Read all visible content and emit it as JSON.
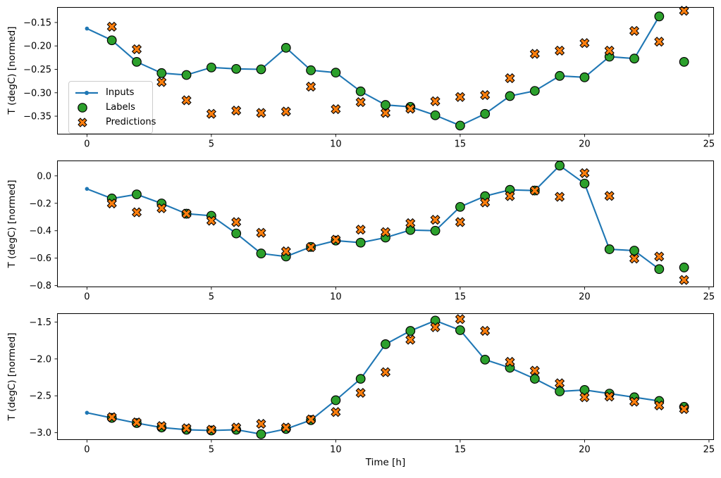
{
  "figure": {
    "xlabel": "Time [h]",
    "background": "#ffffff",
    "colors": {
      "inputs": "#1f77b4",
      "labels": "#2ca02c",
      "predictions": "#ff7f0e",
      "marker_edge": "#000000",
      "spine": "#000000",
      "text": "#000000"
    },
    "legend": {
      "position": "center-left-of-first-subplot",
      "items": [
        {
          "label": "Inputs",
          "marker": "line-with-dot",
          "color": "#1f77b4"
        },
        {
          "label": "Labels",
          "marker": "circle",
          "color": "#2ca02c"
        },
        {
          "label": "Predictions",
          "marker": "X",
          "color": "#ff7f0e"
        }
      ]
    }
  },
  "chart_data": [
    {
      "id": "subplot-1",
      "type": "line",
      "ylabel": "T (degC) [normed]",
      "grid": false,
      "xlim": [
        -1.2,
        25.2
      ],
      "ylim": [
        -0.389,
        -0.117
      ],
      "xtick_values": [
        0,
        5,
        10,
        15,
        20,
        25
      ],
      "xtick_labels": [
        "0",
        "5",
        "10",
        "15",
        "20",
        "25"
      ],
      "ytick_values": [
        -0.15,
        -0.2,
        -0.25,
        -0.3,
        -0.35
      ],
      "ytick_labels": [
        "−0.15",
        "−0.20",
        "−0.25",
        "−0.30",
        "−0.35"
      ],
      "series": [
        {
          "name": "Inputs",
          "plot": "line",
          "marker": "dot",
          "color": "#1f77b4",
          "x": [
            0,
            1,
            2,
            3,
            4,
            5,
            6,
            7,
            8,
            9,
            10,
            11,
            12,
            13,
            14,
            15,
            16,
            17,
            18,
            19,
            20,
            21,
            22,
            23
          ],
          "y": [
            -0.163,
            -0.188,
            -0.234,
            -0.258,
            -0.262,
            -0.246,
            -0.249,
            -0.25,
            -0.204,
            -0.252,
            -0.257,
            -0.297,
            -0.326,
            -0.33,
            -0.348,
            -0.37,
            -0.345,
            -0.307,
            -0.296,
            -0.264,
            -0.267,
            -0.223,
            -0.227,
            -0.137
          ]
        },
        {
          "name": "Labels",
          "plot": "scatter",
          "marker": "circle",
          "color": "#2ca02c",
          "edge_color": "#000000",
          "x": [
            1,
            2,
            3,
            4,
            5,
            6,
            7,
            8,
            9,
            10,
            11,
            12,
            13,
            14,
            15,
            16,
            17,
            18,
            19,
            20,
            21,
            22,
            23,
            24
          ],
          "y": [
            -0.188,
            -0.234,
            -0.258,
            -0.262,
            -0.246,
            -0.249,
            -0.25,
            -0.204,
            -0.252,
            -0.257,
            -0.297,
            -0.326,
            -0.33,
            -0.348,
            -0.37,
            -0.345,
            -0.307,
            -0.296,
            -0.264,
            -0.267,
            -0.223,
            -0.227,
            -0.137,
            -0.234
          ]
        },
        {
          "name": "Predictions",
          "plot": "scatter",
          "marker": "X",
          "color": "#ff7f0e",
          "edge_color": "#000000",
          "x": [
            1,
            2,
            3,
            4,
            5,
            6,
            7,
            8,
            9,
            10,
            11,
            12,
            13,
            14,
            15,
            16,
            17,
            18,
            19,
            20,
            21,
            22,
            23,
            24
          ],
          "y": [
            -0.159,
            -0.207,
            -0.277,
            -0.316,
            -0.345,
            -0.338,
            -0.343,
            -0.34,
            -0.287,
            -0.335,
            -0.32,
            -0.343,
            -0.334,
            -0.318,
            -0.309,
            -0.305,
            -0.269,
            -0.217,
            -0.21,
            -0.194,
            -0.21,
            -0.168,
            -0.191,
            -0.125
          ]
        }
      ]
    },
    {
      "id": "subplot-2",
      "type": "line",
      "ylabel": "T (degC) [normed]",
      "grid": false,
      "xlim": [
        -1.2,
        25.2
      ],
      "ylim": [
        -0.812,
        0.112
      ],
      "xtick_values": [
        0,
        5,
        10,
        15,
        20,
        25
      ],
      "xtick_labels": [
        "0",
        "5",
        "10",
        "15",
        "20",
        "25"
      ],
      "ytick_values": [
        0.0,
        -0.2,
        -0.4,
        -0.6,
        -0.8
      ],
      "ytick_labels": [
        "0.0",
        "−0.2",
        "−0.4",
        "−0.6",
        "−0.8"
      ],
      "series": [
        {
          "name": "Inputs",
          "plot": "line",
          "marker": "dot",
          "color": "#1f77b4",
          "x": [
            0,
            1,
            2,
            3,
            4,
            5,
            6,
            7,
            8,
            9,
            10,
            11,
            12,
            13,
            14,
            15,
            16,
            17,
            18,
            19,
            20,
            21,
            22,
            23
          ],
          "y": [
            -0.095,
            -0.165,
            -0.135,
            -0.201,
            -0.276,
            -0.291,
            -0.42,
            -0.566,
            -0.588,
            -0.518,
            -0.472,
            -0.487,
            -0.45,
            -0.395,
            -0.4,
            -0.226,
            -0.148,
            -0.102,
            -0.107,
            0.075,
            -0.056,
            -0.535,
            -0.545,
            -0.68
          ]
        },
        {
          "name": "Labels",
          "plot": "scatter",
          "marker": "circle",
          "color": "#2ca02c",
          "edge_color": "#000000",
          "x": [
            1,
            2,
            3,
            4,
            5,
            6,
            7,
            8,
            9,
            10,
            11,
            12,
            13,
            14,
            15,
            16,
            17,
            18,
            19,
            20,
            21,
            22,
            23,
            24
          ],
          "y": [
            -0.165,
            -0.135,
            -0.201,
            -0.276,
            -0.291,
            -0.42,
            -0.566,
            -0.588,
            -0.518,
            -0.472,
            -0.487,
            -0.45,
            -0.395,
            -0.4,
            -0.226,
            -0.148,
            -0.102,
            -0.107,
            0.075,
            -0.056,
            -0.535,
            -0.545,
            -0.68,
            -0.668
          ]
        },
        {
          "name": "Predictions",
          "plot": "scatter",
          "marker": "X",
          "color": "#ff7f0e",
          "edge_color": "#000000",
          "x": [
            1,
            2,
            3,
            4,
            5,
            6,
            7,
            8,
            9,
            10,
            11,
            12,
            13,
            14,
            15,
            16,
            17,
            18,
            19,
            20,
            21,
            22,
            23,
            24
          ],
          "y": [
            -0.201,
            -0.266,
            -0.236,
            -0.276,
            -0.327,
            -0.337,
            -0.415,
            -0.55,
            -0.52,
            -0.465,
            -0.392,
            -0.41,
            -0.345,
            -0.32,
            -0.337,
            -0.194,
            -0.148,
            -0.107,
            -0.153,
            0.02,
            -0.146,
            -0.603,
            -0.588,
            -0.759
          ]
        }
      ]
    },
    {
      "id": "subplot-3",
      "type": "line",
      "ylabel": "T (degC) [normed]",
      "grid": false,
      "xlim": [
        -1.2,
        25.2
      ],
      "ylim": [
        -3.099,
        -1.381
      ],
      "xtick_values": [
        0,
        5,
        10,
        15,
        20,
        25
      ],
      "xtick_labels": [
        "0",
        "5",
        "10",
        "15",
        "20",
        "25"
      ],
      "ytick_values": [
        -1.5,
        -2.0,
        -2.5,
        -3.0
      ],
      "ytick_labels": [
        "−1.5",
        "−2.0",
        "−2.5",
        "−3.0"
      ],
      "series": [
        {
          "name": "Inputs",
          "plot": "line",
          "marker": "dot",
          "color": "#1f77b4",
          "x": [
            0,
            1,
            2,
            3,
            4,
            5,
            6,
            7,
            8,
            9,
            10,
            11,
            12,
            13,
            14,
            15,
            16,
            17,
            18,
            19,
            20,
            21,
            22,
            23
          ],
          "y": [
            -2.73,
            -2.8,
            -2.87,
            -2.93,
            -2.96,
            -2.97,
            -2.96,
            -3.02,
            -2.95,
            -2.83,
            -2.56,
            -2.27,
            -1.8,
            -1.62,
            -1.48,
            -1.61,
            -2.01,
            -2.12,
            -2.27,
            -2.44,
            -2.42,
            -2.47,
            -2.52,
            -2.57
          ]
        },
        {
          "name": "Labels",
          "plot": "scatter",
          "marker": "circle",
          "color": "#2ca02c",
          "edge_color": "#000000",
          "x": [
            1,
            2,
            3,
            4,
            5,
            6,
            7,
            8,
            9,
            10,
            11,
            12,
            13,
            14,
            15,
            16,
            17,
            18,
            19,
            20,
            21,
            22,
            23,
            24
          ],
          "y": [
            -2.8,
            -2.87,
            -2.93,
            -2.96,
            -2.97,
            -2.96,
            -3.02,
            -2.95,
            -2.83,
            -2.56,
            -2.27,
            -1.8,
            -1.62,
            -1.48,
            -1.61,
            -2.01,
            -2.12,
            -2.27,
            -2.44,
            -2.42,
            -2.47,
            -2.52,
            -2.57,
            -2.65
          ]
        },
        {
          "name": "Predictions",
          "plot": "scatter",
          "marker": "X",
          "color": "#ff7f0e",
          "edge_color": "#000000",
          "x": [
            1,
            2,
            3,
            4,
            5,
            6,
            7,
            8,
            9,
            10,
            11,
            12,
            13,
            14,
            15,
            16,
            17,
            18,
            19,
            20,
            21,
            22,
            23,
            24
          ],
          "y": [
            -2.79,
            -2.86,
            -2.91,
            -2.94,
            -2.96,
            -2.93,
            -2.88,
            -2.93,
            -2.82,
            -2.72,
            -2.46,
            -2.18,
            -1.74,
            -1.57,
            -1.46,
            -1.62,
            -2.04,
            -2.16,
            -2.33,
            -2.52,
            -2.51,
            -2.58,
            -2.63,
            -2.68
          ]
        }
      ]
    }
  ]
}
